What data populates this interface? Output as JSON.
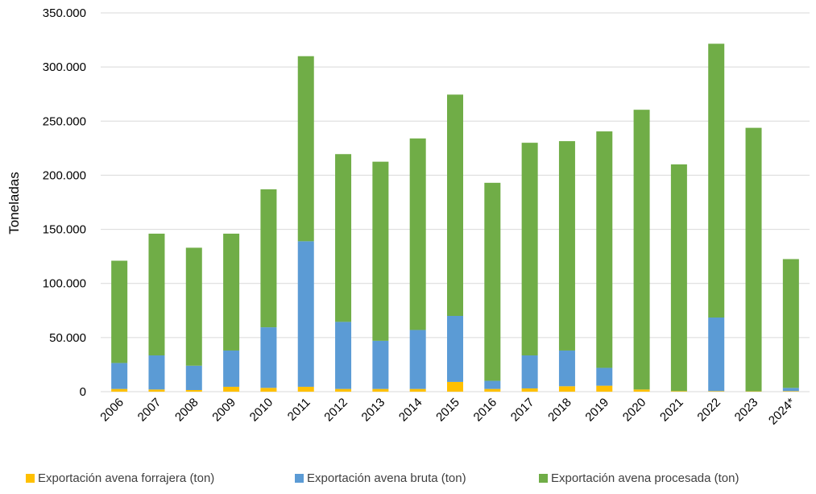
{
  "chart_data": {
    "type": "bar",
    "stacked": true,
    "ylabel": "Toneladas",
    "xlabel": "",
    "ylim": [
      0,
      350000
    ],
    "y_ticks": [
      "0",
      "50.000",
      "100.000",
      "150.000",
      "200.000",
      "250.000",
      "300.000",
      "350.000"
    ],
    "y_tick_values": [
      0,
      50000,
      100000,
      150000,
      200000,
      250000,
      300000,
      350000
    ],
    "grid": true,
    "legend_position": "bottom",
    "categories": [
      "2006",
      "2007",
      "2008",
      "2009",
      "2010",
      "2011",
      "2012",
      "2013",
      "2014",
      "2015",
      "2016",
      "2017",
      "2018",
      "2019",
      "2020",
      "2021",
      "2022",
      "2023",
      "2024*"
    ],
    "series": [
      {
        "name": "Exportación avena forrajera (ton)",
        "color": "#FFC000",
        "values": [
          2500,
          2000,
          1500,
          4500,
          3500,
          4500,
          2500,
          2500,
          2500,
          9000,
          2500,
          3000,
          5000,
          5500,
          2000,
          500,
          500,
          300,
          500
        ]
      },
      {
        "name": "Exportación avena bruta (ton)",
        "color": "#5B9BD5",
        "values": [
          24000,
          31500,
          22500,
          33500,
          56000,
          134500,
          62000,
          44500,
          54500,
          61000,
          7500,
          30500,
          33000,
          16500,
          0,
          0,
          68000,
          0,
          3000
        ]
      },
      {
        "name": "Exportación avena procesada (ton)",
        "color": "#70AD47",
        "values": [
          94500,
          112500,
          109000,
          108000,
          127500,
          171000,
          155000,
          165500,
          177000,
          204500,
          183000,
          196500,
          193500,
          218500,
          258500,
          209500,
          253000,
          243500,
          119000
        ]
      }
    ]
  }
}
